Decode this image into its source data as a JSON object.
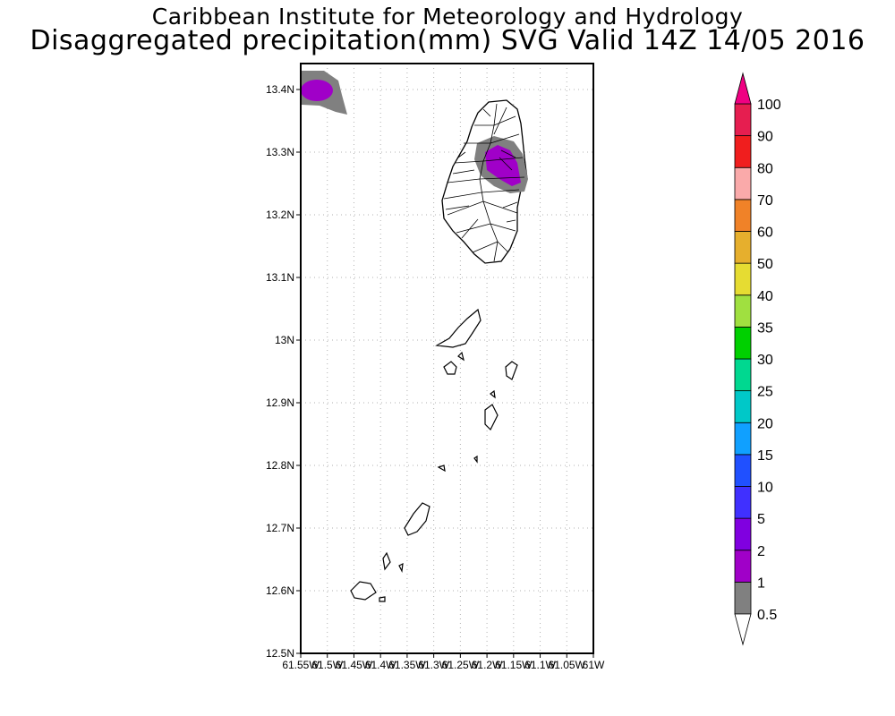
{
  "header": {
    "line1": "Caribbean Institute for Meteorology and Hydrology",
    "line2": "Disaggregated precipitation(mm) SVG Valid 14Z 14/05 2016"
  },
  "map": {
    "lat_ticks": [
      "13.4N",
      "13.3N",
      "13.2N",
      "13.1N",
      "13N",
      "12.9N",
      "12.8N",
      "12.7N",
      "12.6N",
      "12.5N"
    ],
    "lon_ticks": [
      "61.55W",
      "61.5W",
      "61.45W",
      "61.4W",
      "61.35W",
      "61.3W",
      "61.25W",
      "61.2W",
      "61.15W",
      "61.1W",
      "61.05W",
      "61W"
    ],
    "lat_range": [
      12.5,
      13.44
    ],
    "lon_range": [
      -61.55,
      -61.0
    ],
    "grid": true
  },
  "colorbar": {
    "levels": [
      "0.5",
      "1",
      "2",
      "5",
      "10",
      "15",
      "20",
      "25",
      "30",
      "35",
      "40",
      "50",
      "60",
      "70",
      "80",
      "90",
      "100"
    ],
    "colors": [
      "#808080",
      "#a000c8",
      "#8000e0",
      "#4030ff",
      "#2050ff",
      "#10a0ff",
      "#00c8c8",
      "#00d890",
      "#00d000",
      "#a0e040",
      "#e6dc32",
      "#e6af2d",
      "#f08228",
      "#faaaaa",
      "#f01e1e",
      "#e61e50",
      "#f00082"
    ]
  }
}
